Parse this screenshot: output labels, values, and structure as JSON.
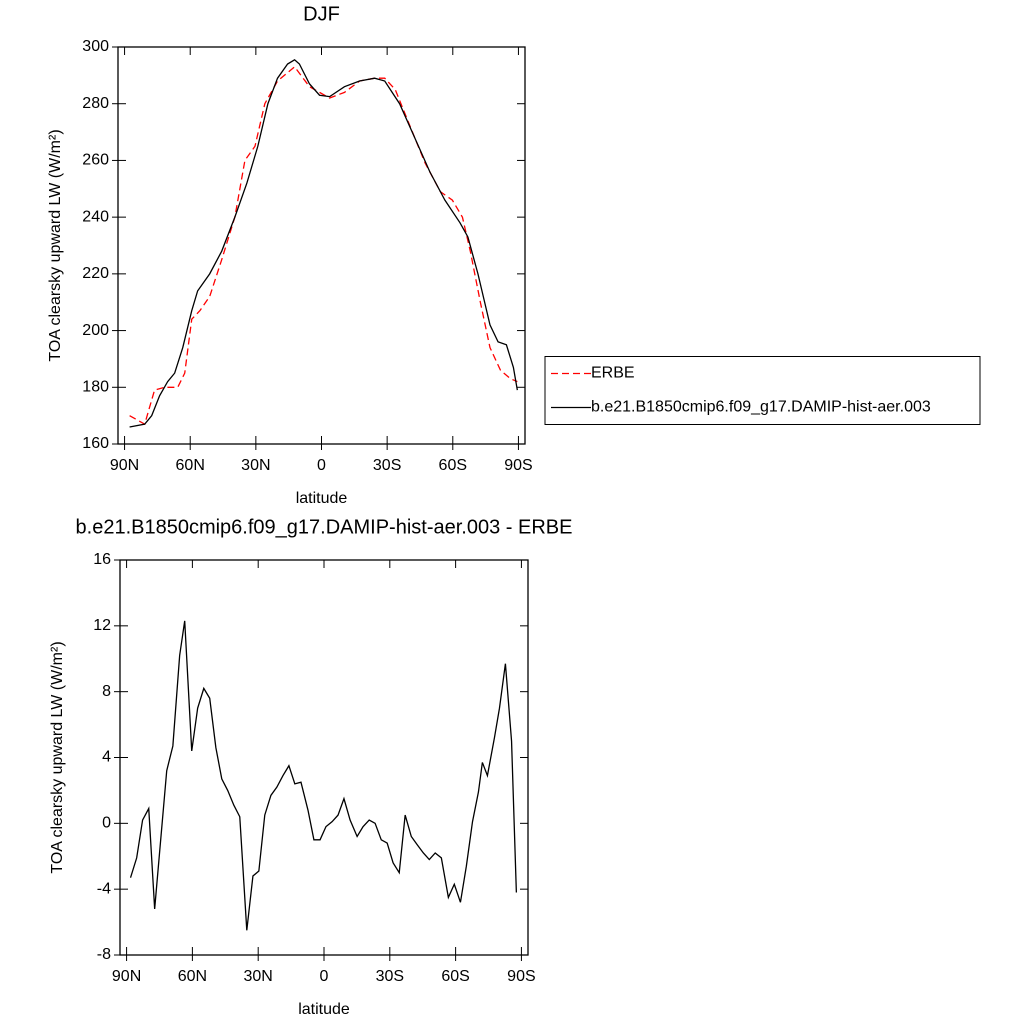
{
  "chart_data": [
    {
      "type": "line",
      "title": "DJF",
      "xlabel": "latitude",
      "ylabel": "TOA clearsky upward LW (W/m²)",
      "xlim": [
        93,
        -93
      ],
      "xticks": [
        {
          "value": 90,
          "label": "90N"
        },
        {
          "value": 60,
          "label": "60N"
        },
        {
          "value": 30,
          "label": "30N"
        },
        0,
        {
          "value": -30,
          "label": "30S"
        },
        {
          "value": -60,
          "label": "60S"
        },
        {
          "value": -90,
          "label": "90S"
        }
      ],
      "ylim": [
        160,
        300
      ],
      "yticks": [
        160,
        180,
        200,
        220,
        240,
        260,
        280,
        300
      ],
      "legend": "right",
      "series": [
        {
          "name": "ERBE",
          "color": "#ff0000",
          "dashed": true,
          "x": [
            87.7,
            80.8,
            76.3,
            71.7,
            65.7,
            62.5,
            59.3,
            55.6,
            51.1,
            45.6,
            39.6,
            35.0,
            30.4,
            25.9,
            20.1,
            12.3,
            5.5,
            -3.7,
            -10.5,
            -17.4,
            -24.3,
            -28.9,
            -33.7,
            -40.5,
            -47.4,
            -54.3,
            -59.8,
            -64.4,
            -68.0,
            -72.6,
            -77.0,
            -81.8,
            -86.4,
            -89.5
          ],
          "values": [
            170,
            167,
            179,
            180,
            180,
            185,
            204,
            207,
            212,
            225,
            240,
            260,
            265,
            280,
            288,
            293,
            286,
            282,
            284,
            288,
            289,
            289,
            285,
            272,
            259,
            249,
            246,
            240,
            228,
            210,
            194,
            186,
            183,
            182
          ]
        },
        {
          "name": "b.e21.B1850cmip6.f09_g17.DAMIP-hist-aer.003",
          "color": "#000000",
          "dashed": false,
          "x": [
            87.7,
            80.8,
            77.6,
            74.0,
            70.3,
            67.1,
            63.4,
            59.3,
            56.6,
            51.1,
            45.6,
            39.6,
            34.1,
            29.1,
            24.5,
            20.1,
            15.5,
            12.3,
            10.1,
            5.5,
            0.9,
            -3.7,
            -10.5,
            -17.4,
            -24.3,
            -28.9,
            -35.7,
            -42.6,
            -49.5,
            -56.4,
            -63.3,
            -66.9,
            -71.5,
            -77.0,
            -80.7,
            -84.5,
            -87.7,
            -89.5
          ],
          "values": [
            166,
            167,
            170,
            177,
            182,
            185,
            194,
            207,
            214,
            220,
            228,
            240,
            252,
            265,
            280,
            289,
            294,
            295.5,
            294,
            287,
            283,
            282.5,
            286,
            288,
            289,
            288,
            280,
            268,
            256,
            246,
            238,
            233,
            220,
            202,
            196,
            195,
            187,
            179
          ]
        }
      ]
    },
    {
      "type": "line",
      "title": "b.e21.B1850cmip6.f09_g17.DAMIP-hist-aer.003 - ERBE",
      "xlabel": "latitude",
      "ylabel": "TOA clearsky upward LW (W/m²)",
      "xlim": [
        93,
        -93
      ],
      "xticks": [
        {
          "value": 90,
          "label": "90N"
        },
        {
          "value": 60,
          "label": "60N"
        },
        {
          "value": 30,
          "label": "30N"
        },
        0,
        {
          "value": -30,
          "label": "30S"
        },
        {
          "value": -60,
          "label": "60S"
        },
        {
          "value": -90,
          "label": "90S"
        }
      ],
      "ylim": [
        -8,
        16
      ],
      "yticks": [
        -8,
        -4,
        0,
        4,
        8,
        12,
        16
      ],
      "color": "#000000",
      "x": [
        88.2,
        85.4,
        82.7,
        79.9,
        77.2,
        71.7,
        68.9,
        65.8,
        63.5,
        60.3,
        57.6,
        54.8,
        52.1,
        49.3,
        46.6,
        43.9,
        41.1,
        38.4,
        35.2,
        32.4,
        29.7,
        27.0,
        24.2,
        21.5,
        18.7,
        16.0,
        13.3,
        10.5,
        7.3,
        4.6,
        1.8,
        -0.9,
        -3.7,
        -6.4,
        -9.1,
        -11.9,
        -15.1,
        -17.8,
        -20.6,
        -23.3,
        -26.1,
        -28.8,
        -31.5,
        -34.3,
        -37.0,
        -39.8,
        -42.5,
        -45.3,
        -48.0,
        -50.7,
        -53.5,
        -56.7,
        -59.4,
        -62.2,
        -64.9,
        -67.7,
        -70.4,
        -72.2,
        -74.5,
        -77.7,
        -80.0,
        -82.7,
        -85.5,
        -87.7
      ],
      "values": [
        -3.3,
        -2.1,
        0.2,
        0.9,
        -5.2,
        3.2,
        4.7,
        10.2,
        12.3,
        4.4,
        7.0,
        8.2,
        7.6,
        4.6,
        2.7,
        2.0,
        1.1,
        0.4,
        -6.5,
        -3.2,
        -2.9,
        0.5,
        1.7,
        2.2,
        2.9,
        3.5,
        2.4,
        2.5,
        0.8,
        -1.0,
        -1.0,
        -0.2,
        0.1,
        0.5,
        1.5,
        0.2,
        -0.8,
        -0.2,
        0.2,
        0,
        -1.0,
        -1.2,
        -2.4,
        -3.0,
        0.5,
        -0.8,
        -1.3,
        -1.8,
        -2.2,
        -1.8,
        -2.1,
        -4.5,
        -3.7,
        -4.8,
        -2.6,
        0.1,
        1.9,
        3.7,
        2.9,
        5.2,
        7.0,
        9.7,
        5.0,
        -4.2
      ]
    }
  ]
}
